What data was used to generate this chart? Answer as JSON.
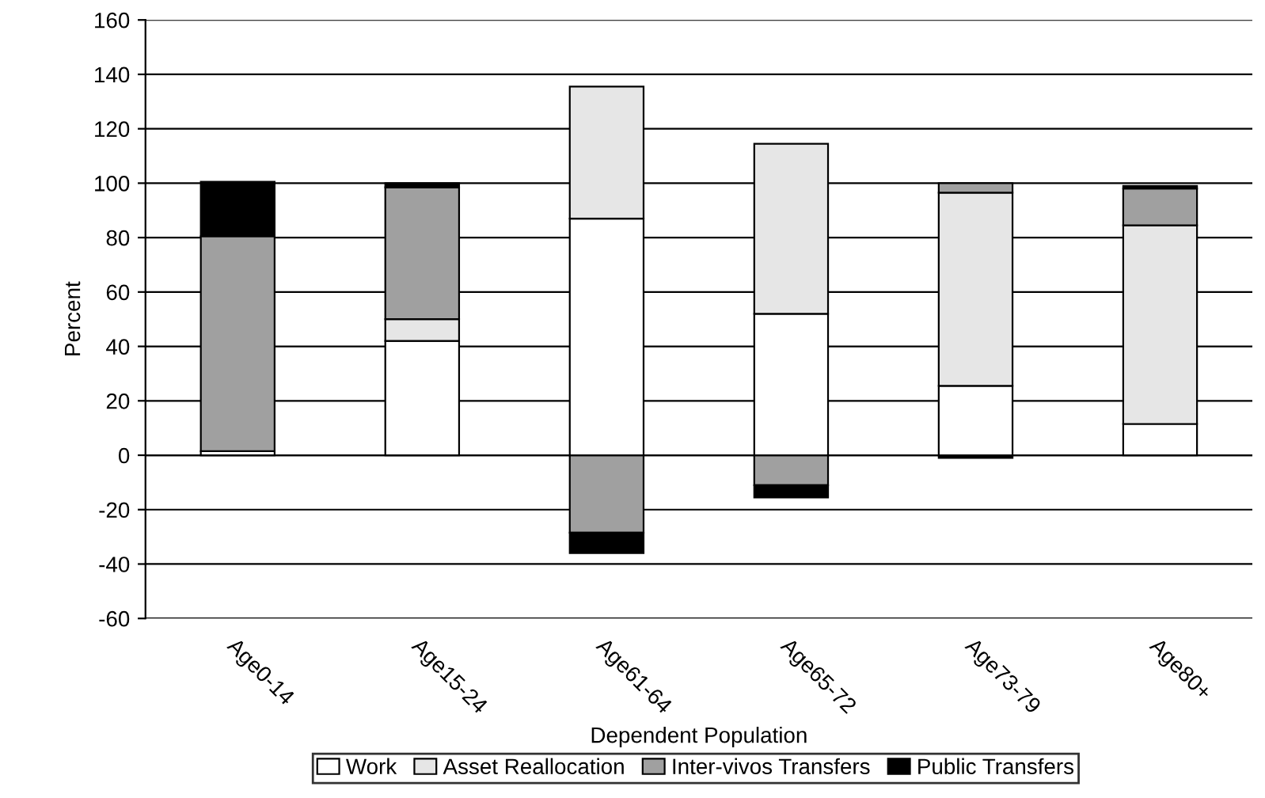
{
  "chart_data": {
    "type": "bar",
    "stacked": true,
    "xlabel": "Dependent Population",
    "ylabel": "Percent",
    "categories": [
      "Age0-14",
      "Age15-24",
      "Age61-64",
      "Age65-72",
      "Age73-79",
      "Age80+"
    ],
    "series": [
      {
        "name": "Work",
        "color": "#ffffff",
        "values": [
          1.5,
          42,
          87,
          52,
          25.5,
          11.5
        ]
      },
      {
        "name": "Asset Reallocation",
        "color": "#e6e6e6",
        "values": [
          null,
          8,
          48.5,
          62.5,
          71,
          73
        ]
      },
      {
        "name": "Inter-vivos Transfers",
        "color": "#a0a0a0",
        "values": [
          79,
          48.5,
          -28.5,
          -11,
          3.5,
          13.5
        ]
      },
      {
        "name": "Public Transfers",
        "color": "#000000",
        "values": [
          20,
          1.5,
          -7.5,
          -4.5,
          -1,
          1
        ]
      }
    ],
    "ylim": [
      -60,
      160
    ],
    "yticks": [
      -60,
      -40,
      -20,
      0,
      20,
      40,
      60,
      80,
      100,
      120,
      140,
      160
    ],
    "grid": "y",
    "legend": "bottom"
  }
}
